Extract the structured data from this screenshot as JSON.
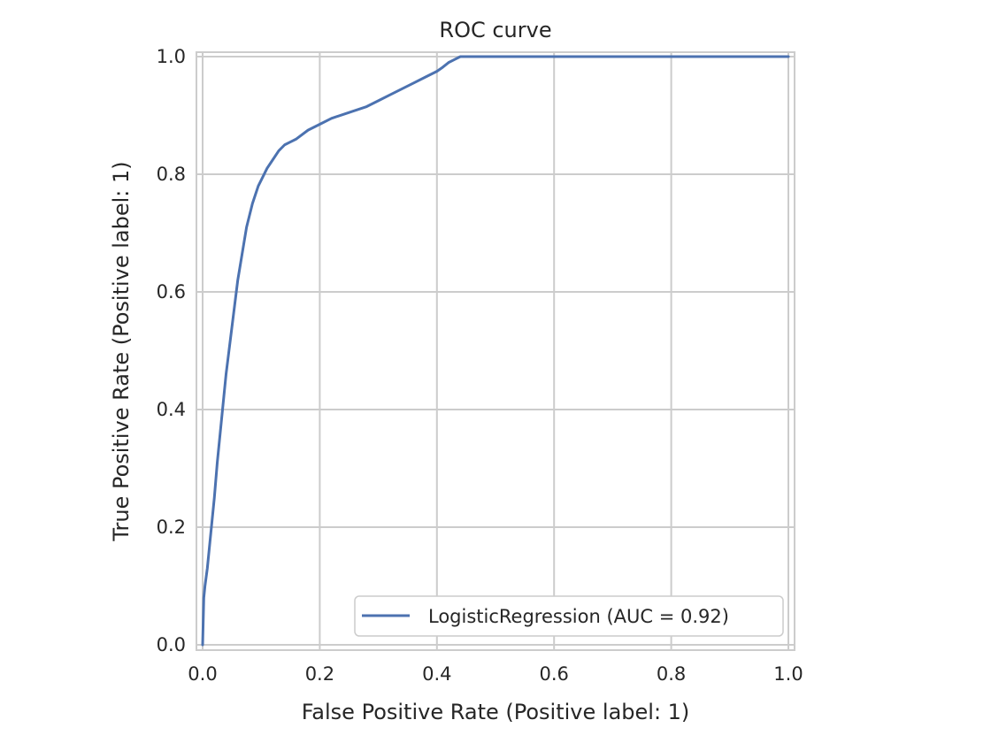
{
  "chart_data": {
    "type": "line",
    "title": "ROC curve",
    "xlabel": "False Positive Rate (Positive label: 1)",
    "ylabel": "True Positive Rate (Positive label: 1)",
    "xlim": [
      0.0,
      1.0
    ],
    "ylim": [
      0.0,
      1.0
    ],
    "grid": true,
    "legend_position": "bottom-right",
    "x_ticks": [
      0.0,
      0.2,
      0.4,
      0.6,
      0.8,
      1.0
    ],
    "y_ticks": [
      0.0,
      0.2,
      0.4,
      0.6,
      0.8,
      1.0
    ],
    "x_tick_labels": [
      "0.0",
      "0.2",
      "0.4",
      "0.6",
      "0.8",
      "1.0"
    ],
    "y_tick_labels": [
      "0.0",
      "0.2",
      "0.4",
      "0.6",
      "0.8",
      "1.0"
    ],
    "series": [
      {
        "name": "LogisticRegression (AUC = 0.92)",
        "color": "#4c72b0",
        "x": [
          0.0,
          0.002,
          0.004,
          0.008,
          0.012,
          0.016,
          0.02,
          0.025,
          0.03,
          0.035,
          0.04,
          0.045,
          0.05,
          0.055,
          0.06,
          0.065,
          0.07,
          0.075,
          0.08,
          0.085,
          0.09,
          0.095,
          0.1,
          0.11,
          0.12,
          0.13,
          0.14,
          0.15,
          0.16,
          0.18,
          0.2,
          0.22,
          0.25,
          0.28,
          0.3,
          0.32,
          0.34,
          0.36,
          0.38,
          0.4,
          0.41,
          0.42,
          0.43,
          0.44,
          0.5,
          0.6,
          0.7,
          0.8,
          0.9,
          1.0
        ],
        "y": [
          0.0,
          0.08,
          0.1,
          0.13,
          0.17,
          0.21,
          0.25,
          0.31,
          0.36,
          0.41,
          0.46,
          0.5,
          0.54,
          0.58,
          0.62,
          0.65,
          0.68,
          0.71,
          0.73,
          0.75,
          0.765,
          0.78,
          0.79,
          0.81,
          0.825,
          0.84,
          0.85,
          0.855,
          0.86,
          0.875,
          0.885,
          0.895,
          0.905,
          0.915,
          0.925,
          0.935,
          0.945,
          0.955,
          0.965,
          0.975,
          0.982,
          0.99,
          0.995,
          1.0,
          1.0,
          1.0,
          1.0,
          1.0,
          1.0,
          1.0
        ]
      }
    ]
  }
}
